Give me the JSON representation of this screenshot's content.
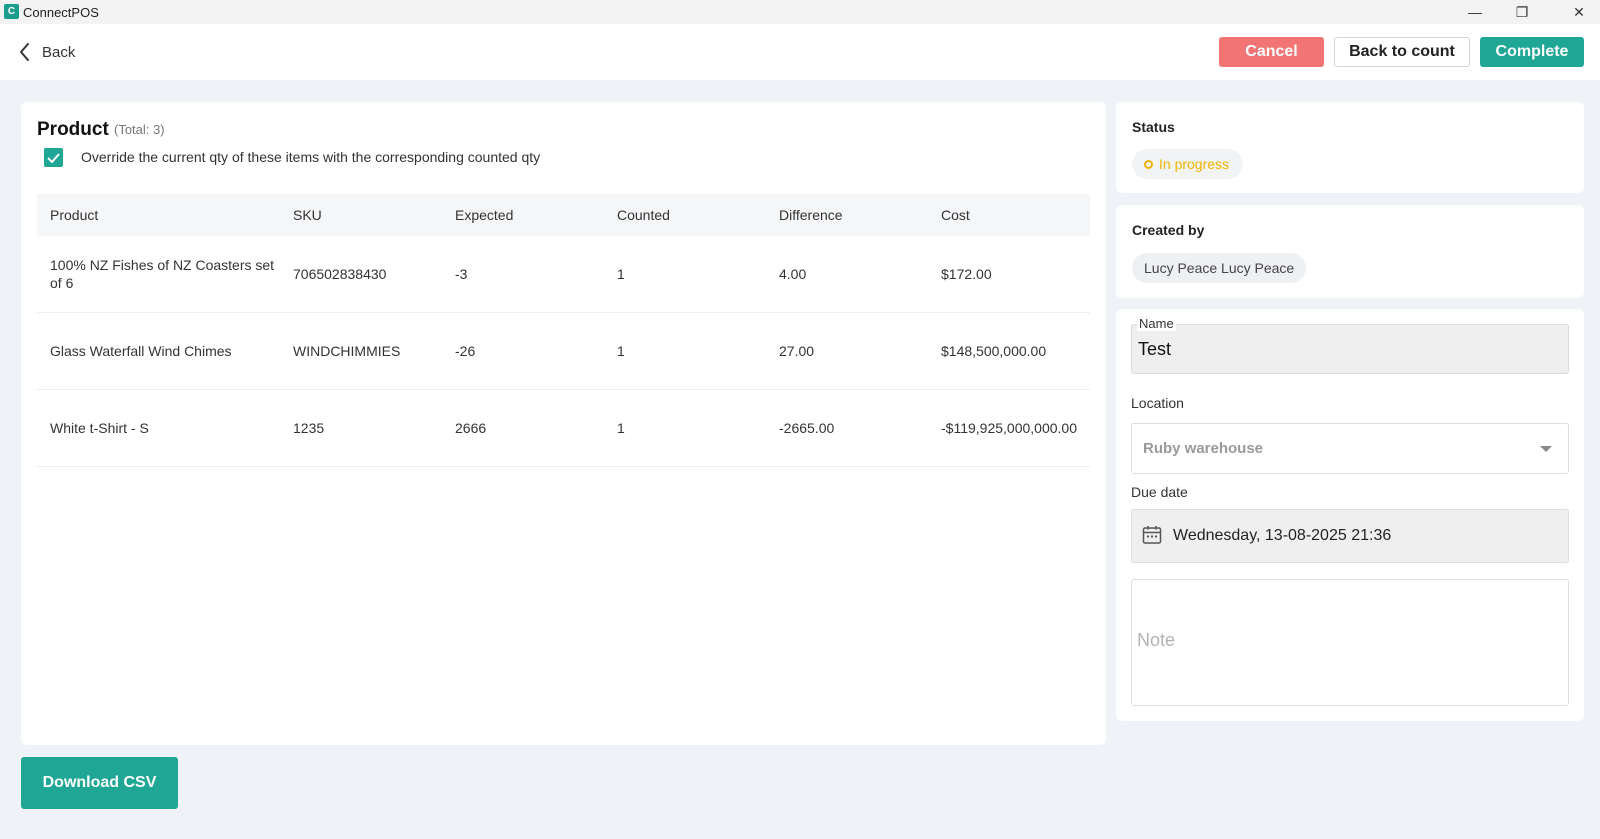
{
  "window": {
    "title": "ConnectPOS",
    "logo_letter": "C",
    "minimize_glyph": "—",
    "restore_glyph": "❐",
    "close_glyph": "✕"
  },
  "topbar": {
    "back_label": "Back",
    "cancel_label": "Cancel",
    "back_to_count_label": "Back to count",
    "complete_label": "Complete"
  },
  "product": {
    "title": "Product",
    "total": "(Total: 3)",
    "override_checked": true,
    "override_label": "Override the current qty of these items with the corresponding counted qty",
    "columns": [
      "Product",
      "SKU",
      "Expected",
      "Counted",
      "Difference",
      "Cost"
    ],
    "rows": [
      {
        "product": "100% NZ  Fishes of NZ Coasters set of 6",
        "sku": "706502838430",
        "expected": "-3",
        "counted": "1",
        "difference": "4.00",
        "cost": "$172.00"
      },
      {
        "product": "Glass Waterfall Wind Chimes",
        "sku": "WINDCHIMMIES",
        "expected": "-26",
        "counted": "1",
        "difference": "27.00",
        "cost": "$148,500,000.00"
      },
      {
        "product": "White t-Shirt - S",
        "sku": "1235",
        "expected": "2666",
        "counted": "1",
        "difference": "-2665.00",
        "cost": "-$119,925,000,000.00"
      }
    ]
  },
  "status": {
    "label": "Status",
    "value": "In progress",
    "color": "#f0b400"
  },
  "created_by": {
    "label": "Created by",
    "value": "Lucy Peace Lucy Peace"
  },
  "form": {
    "name_label": "Name",
    "name_value": "Test",
    "location_label": "Location",
    "location_value": "Ruby warehouse",
    "due_date_label": "Due date",
    "due_date_value": "Wednesday, 13-08-2025 21:36",
    "note_placeholder": "Note"
  },
  "footer": {
    "download_label": "Download CSV"
  },
  "colors": {
    "accent": "#1fa695",
    "cancel": "#f37474",
    "background": "#eff2f6"
  }
}
